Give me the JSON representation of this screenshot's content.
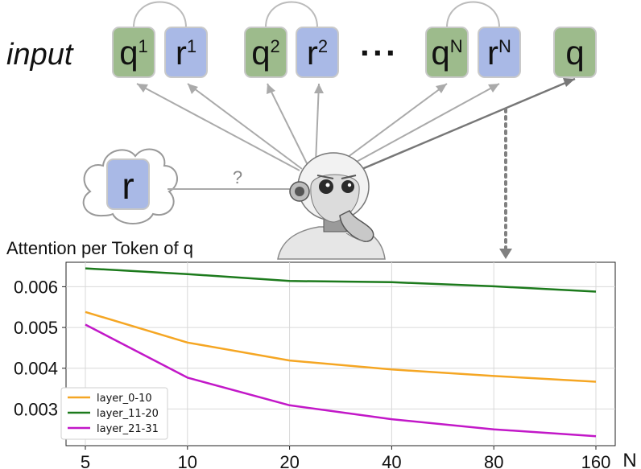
{
  "diagram": {
    "input_label": "input",
    "tokens": [
      {
        "base": "q",
        "sup": "1",
        "kind": "query"
      },
      {
        "base": "r",
        "sup": "1",
        "kind": "response"
      },
      {
        "base": "q",
        "sup": "2",
        "kind": "query"
      },
      {
        "base": "r",
        "sup": "2",
        "kind": "response"
      },
      {
        "base": "q",
        "sup": "N",
        "kind": "query"
      },
      {
        "base": "r",
        "sup": "N",
        "kind": "response"
      },
      {
        "base": "q",
        "sup": "",
        "kind": "query"
      }
    ],
    "ellipsis": "···",
    "cloud_token": "r",
    "question_mark": "?",
    "colors": {
      "query": "#9dbb8c",
      "response": "#a9b9e6",
      "arrow": "#aaaaaa",
      "arrow_dark": "#777777",
      "dotted": "#808080"
    }
  },
  "chart_data": {
    "type": "line",
    "title": "Attention per Token of q",
    "xlabel": "N",
    "ylabel": "",
    "x": [
      5,
      10,
      20,
      40,
      80,
      160
    ],
    "x_scale": "log",
    "yticks": [
      "0.003",
      "0.004",
      "0.005",
      "0.006"
    ],
    "ylim": [
      0.0021,
      0.0066
    ],
    "grid": true,
    "legend_position": "lower-left",
    "series": [
      {
        "name": "layer_0-10",
        "color": "#f5a623",
        "values": [
          0.00538,
          0.00463,
          0.00419,
          0.00397,
          0.00381,
          0.00367
        ]
      },
      {
        "name": "layer_11-20",
        "color": "#1c7a1c",
        "values": [
          0.00645,
          0.00631,
          0.00614,
          0.00611,
          0.00601,
          0.00588
        ]
      },
      {
        "name": "layer_21-31",
        "color": "#c218c8",
        "values": [
          0.00507,
          0.00377,
          0.00309,
          0.00275,
          0.0025,
          0.00233
        ]
      }
    ]
  }
}
